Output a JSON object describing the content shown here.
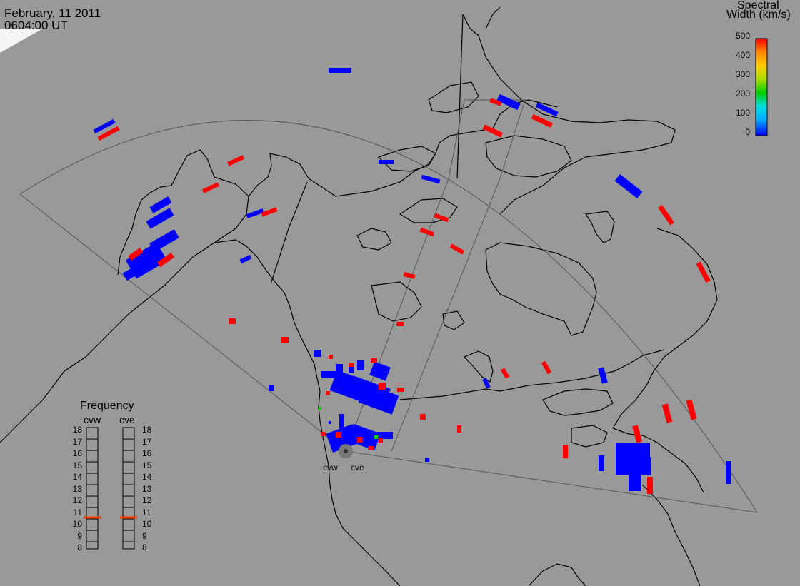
{
  "title": {
    "date": "February, 11 2011",
    "time": "0604:00 UT"
  },
  "colorbar": {
    "title_line1": "Spectral",
    "title_line2": "Width (km/s)",
    "ticks": [
      "500",
      "400",
      "300",
      "200",
      "100",
      "0"
    ],
    "range": [
      0,
      500
    ],
    "colors": [
      "#0000ff",
      "#00aaff",
      "#00e0e0",
      "#00cc00",
      "#aadd00",
      "#ffcc00",
      "#ff8800",
      "#ff0000"
    ]
  },
  "frequency_panel": {
    "title": "Frequency",
    "radars": [
      "cvw",
      "cve"
    ],
    "scale": [
      "18",
      "17",
      "16",
      "15",
      "14",
      "13",
      "12",
      "11",
      "10",
      "9",
      "8"
    ],
    "marker_mhz": 10.8,
    "marker_color": "#ff4400"
  },
  "sites": [
    "cvw",
    "cve"
  ],
  "colors": {
    "background": "#999999",
    "coast": "#000000",
    "fov": "#555555",
    "low_width": "#0000ff",
    "high_width": "#ff0000",
    "site": "#666666"
  }
}
